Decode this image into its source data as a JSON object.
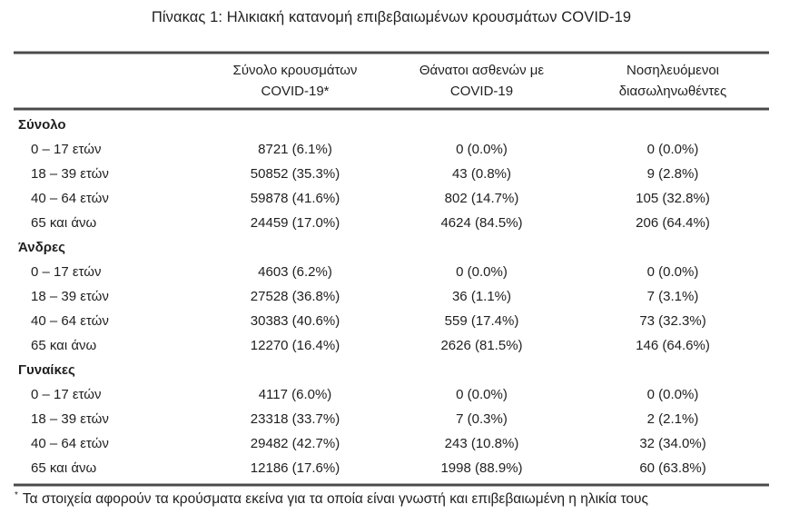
{
  "title": "Πίνακας 1: Ηλικιακή κατανομή επιβεβαιωμένων κρουσμάτων COVID-19",
  "table": {
    "columns": [
      {
        "line1": "Σύνολο κρουσμάτων",
        "line2": "COVID-19*"
      },
      {
        "line1": "Θάνατοι ασθενών με",
        "line2": "COVID-19"
      },
      {
        "line1": "Νοσηλευόμενοι",
        "line2": "διασωληνωθέντες"
      }
    ],
    "groups": [
      {
        "label": "Σύνολο",
        "rows": [
          {
            "label": "0 – 17 ετών",
            "cases": "8721 (6.1%)",
            "deaths": "0 (0.0%)",
            "intubated": "0 (0.0%)"
          },
          {
            "label": "18 – 39 ετών",
            "cases": "50852 (35.3%)",
            "deaths": "43 (0.8%)",
            "intubated": "9 (2.8%)"
          },
          {
            "label": "40 – 64 ετών",
            "cases": "59878 (41.6%)",
            "deaths": "802 (14.7%)",
            "intubated": "105 (32.8%)"
          },
          {
            "label": "65 και άνω",
            "cases": "24459 (17.0%)",
            "deaths": "4624 (84.5%)",
            "intubated": "206 (64.4%)"
          }
        ]
      },
      {
        "label": "Άνδρες",
        "rows": [
          {
            "label": "0 – 17 ετών",
            "cases": "4603 (6.2%)",
            "deaths": "0 (0.0%)",
            "intubated": "0 (0.0%)"
          },
          {
            "label": "18 – 39 ετών",
            "cases": "27528 (36.8%)",
            "deaths": "36 (1.1%)",
            "intubated": "7 (3.1%)"
          },
          {
            "label": "40 – 64 ετών",
            "cases": "30383 (40.6%)",
            "deaths": "559 (17.4%)",
            "intubated": "73 (32.3%)"
          },
          {
            "label": "65 και άνω",
            "cases": "12270 (16.4%)",
            "deaths": "2626 (81.5%)",
            "intubated": "146 (64.6%)"
          }
        ]
      },
      {
        "label": "Γυναίκες",
        "rows": [
          {
            "label": "0 – 17 ετών",
            "cases": "4117 (6.0%)",
            "deaths": "0 (0.0%)",
            "intubated": "0 (0.0%)"
          },
          {
            "label": "18 – 39 ετών",
            "cases": "23318 (33.7%)",
            "deaths": "7 (0.3%)",
            "intubated": "2 (2.1%)"
          },
          {
            "label": "40 – 64 ετών",
            "cases": "29482 (42.7%)",
            "deaths": "243 (10.8%)",
            "intubated": "32 (34.0%)"
          },
          {
            "label": "65 και άνω",
            "cases": "12186 (17.6%)",
            "deaths": "1998 (88.9%)",
            "intubated": "60 (63.8%)"
          }
        ]
      }
    ]
  },
  "footnote": {
    "marker": "*",
    "text": "Τα στοιχεία αφορούν τα κρούσματα εκείνα για τα οποία είναι γνωστή και επιβεβαιωμένη η ηλικία τους"
  },
  "colors": {
    "text": "#1f1f1f",
    "rule_dark": "#4a4a4a",
    "rule_light": "#a8a8a8",
    "background": "#ffffff"
  }
}
